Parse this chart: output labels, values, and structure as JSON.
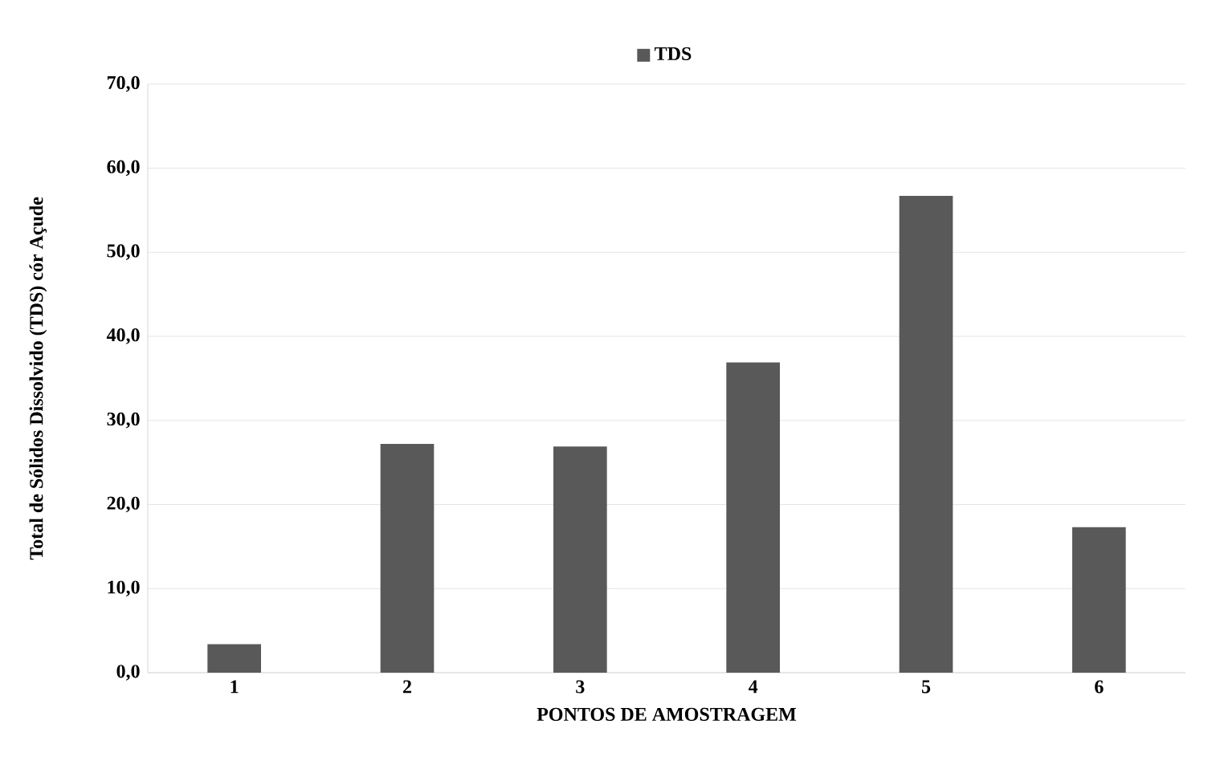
{
  "chart_data": {
    "type": "bar",
    "xlabel": "PONTOS DE AMOSTRAGEM",
    "ylabel": "Total de Sólidos Dissolvido (TDS) cór Açude",
    "categories": [
      "1",
      "2",
      "3",
      "4",
      "5",
      "6"
    ],
    "series": [
      {
        "name": "TDS",
        "color": "#595959",
        "values": [
          3.4,
          27.2,
          26.9,
          36.9,
          56.7,
          17.3
        ]
      }
    ],
    "ylim": [
      0,
      70
    ],
    "yticks": [
      {
        "value": 0,
        "label": "0,0"
      },
      {
        "value": 10,
        "label": "10,0"
      },
      {
        "value": 20,
        "label": "20,0"
      },
      {
        "value": 30,
        "label": "30,0"
      },
      {
        "value": 40,
        "label": "40,0"
      },
      {
        "value": 50,
        "label": "50,0"
      },
      {
        "value": 60,
        "label": "60,0"
      },
      {
        "value": 70,
        "label": "70,0"
      }
    ],
    "grid": "y",
    "legend": "top"
  }
}
